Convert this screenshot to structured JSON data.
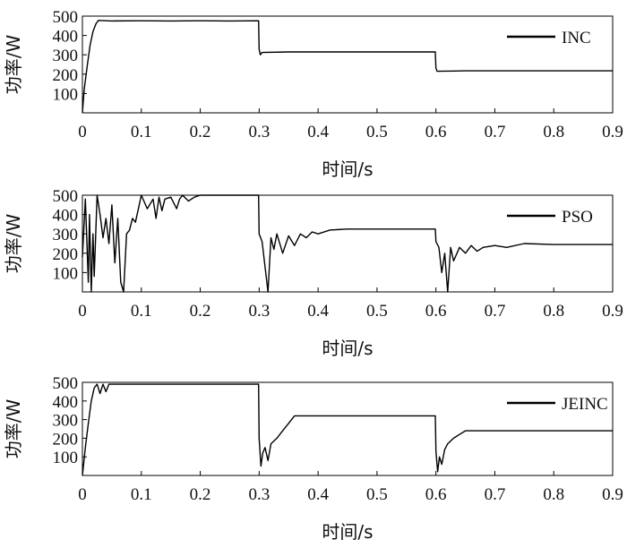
{
  "chart_data": [
    {
      "type": "line",
      "xlabel": "时间/s",
      "ylabel": "功率/W",
      "xlim": [
        0,
        0.9
      ],
      "ylim": [
        0,
        500
      ],
      "xticks": [
        "0",
        "0.1",
        "0.2",
        "0.3",
        "0.4",
        "0.5",
        "0.6",
        "0.7",
        "0.8",
        "0.9"
      ],
      "yticks": [
        "100",
        "200",
        "300",
        "400",
        "500"
      ],
      "grid": false,
      "legend_position": "right",
      "series": [
        {
          "name": "INC",
          "color": "#000000",
          "x": [
            0,
            0.003,
            0.008,
            0.013,
            0.018,
            0.023,
            0.027,
            0.05,
            0.1,
            0.15,
            0.2,
            0.25,
            0.299,
            0.3,
            0.302,
            0.305,
            0.35,
            0.4,
            0.45,
            0.5,
            0.55,
            0.599,
            0.6,
            0.602,
            0.65,
            0.7,
            0.75,
            0.8,
            0.85,
            0.9
          ],
          "y": [
            0,
            120,
            240,
            350,
            420,
            460,
            478,
            475,
            476,
            475,
            476,
            475,
            476,
            330,
            300,
            312,
            315,
            315,
            315,
            315,
            315,
            315,
            230,
            215,
            217,
            217,
            217,
            217,
            217,
            217
          ]
        }
      ]
    },
    {
      "type": "line",
      "xlabel": "时间/s",
      "ylabel": "功率/W",
      "xlim": [
        0,
        0.9
      ],
      "ylim": [
        0,
        500
      ],
      "xticks": [
        "0",
        "0.1",
        "0.2",
        "0.3",
        "0.4",
        "0.5",
        "0.6",
        "0.7",
        "0.8",
        "0.9"
      ],
      "yticks": [
        "100",
        "200",
        "300",
        "400",
        "500"
      ],
      "grid": false,
      "legend_position": "right",
      "series": [
        {
          "name": "PSO",
          "color": "#000000",
          "x": [
            0,
            0.005,
            0.01,
            0.012,
            0.015,
            0.018,
            0.02,
            0.025,
            0.03,
            0.035,
            0.04,
            0.045,
            0.05,
            0.055,
            0.06,
            0.065,
            0.07,
            0.075,
            0.08,
            0.085,
            0.09,
            0.1,
            0.11,
            0.12,
            0.125,
            0.13,
            0.135,
            0.14,
            0.15,
            0.16,
            0.165,
            0.17,
            0.18,
            0.19,
            0.2,
            0.25,
            0.299,
            0.3,
            0.305,
            0.31,
            0.315,
            0.32,
            0.325,
            0.33,
            0.34,
            0.35,
            0.36,
            0.37,
            0.38,
            0.39,
            0.4,
            0.42,
            0.45,
            0.5,
            0.55,
            0.599,
            0.6,
            0.605,
            0.61,
            0.615,
            0.62,
            0.625,
            0.63,
            0.64,
            0.65,
            0.66,
            0.67,
            0.68,
            0.7,
            0.72,
            0.75,
            0.8,
            0.85,
            0.9
          ],
          "y": [
            180,
            480,
            50,
            400,
            0,
            300,
            80,
            500,
            400,
            280,
            380,
            250,
            450,
            150,
            380,
            50,
            0,
            300,
            320,
            380,
            360,
            500,
            430,
            480,
            380,
            490,
            420,
            480,
            490,
            430,
            480,
            500,
            470,
            490,
            500,
            500,
            500,
            300,
            260,
            130,
            0,
            280,
            220,
            300,
            200,
            290,
            240,
            300,
            280,
            310,
            300,
            320,
            325,
            325,
            325,
            325,
            260,
            230,
            100,
            200,
            0,
            230,
            160,
            230,
            200,
            240,
            210,
            230,
            240,
            230,
            250,
            245,
            245,
            245
          ]
        }
      ]
    },
    {
      "type": "line",
      "xlabel": "时间/s",
      "ylabel": "功率/W",
      "xlim": [
        0,
        0.9
      ],
      "ylim": [
        0,
        500
      ],
      "xticks": [
        "0",
        "0.1",
        "0.2",
        "0.3",
        "0.4",
        "0.5",
        "0.6",
        "0.7",
        "0.8",
        "0.9"
      ],
      "yticks": [
        "100",
        "200",
        "300",
        "400",
        "500"
      ],
      "grid": false,
      "legend_position": "right",
      "series": [
        {
          "name": "JEINC",
          "color": "#000000",
          "x": [
            0,
            0.005,
            0.01,
            0.015,
            0.02,
            0.025,
            0.03,
            0.035,
            0.04,
            0.045,
            0.05,
            0.1,
            0.15,
            0.2,
            0.25,
            0.299,
            0.3,
            0.303,
            0.306,
            0.31,
            0.315,
            0.32,
            0.33,
            0.34,
            0.35,
            0.36,
            0.4,
            0.45,
            0.5,
            0.55,
            0.599,
            0.6,
            0.603,
            0.606,
            0.61,
            0.615,
            0.62,
            0.63,
            0.64,
            0.65,
            0.66,
            0.7,
            0.75,
            0.8,
            0.85,
            0.9
          ],
          "y": [
            0,
            150,
            280,
            400,
            470,
            490,
            440,
            490,
            450,
            490,
            490,
            490,
            490,
            490,
            490,
            490,
            200,
            50,
            120,
            150,
            80,
            170,
            200,
            240,
            280,
            320,
            320,
            320,
            320,
            320,
            320,
            130,
            20,
            100,
            60,
            140,
            170,
            200,
            220,
            240,
            240,
            240,
            240,
            240,
            240,
            240
          ]
        }
      ]
    }
  ]
}
